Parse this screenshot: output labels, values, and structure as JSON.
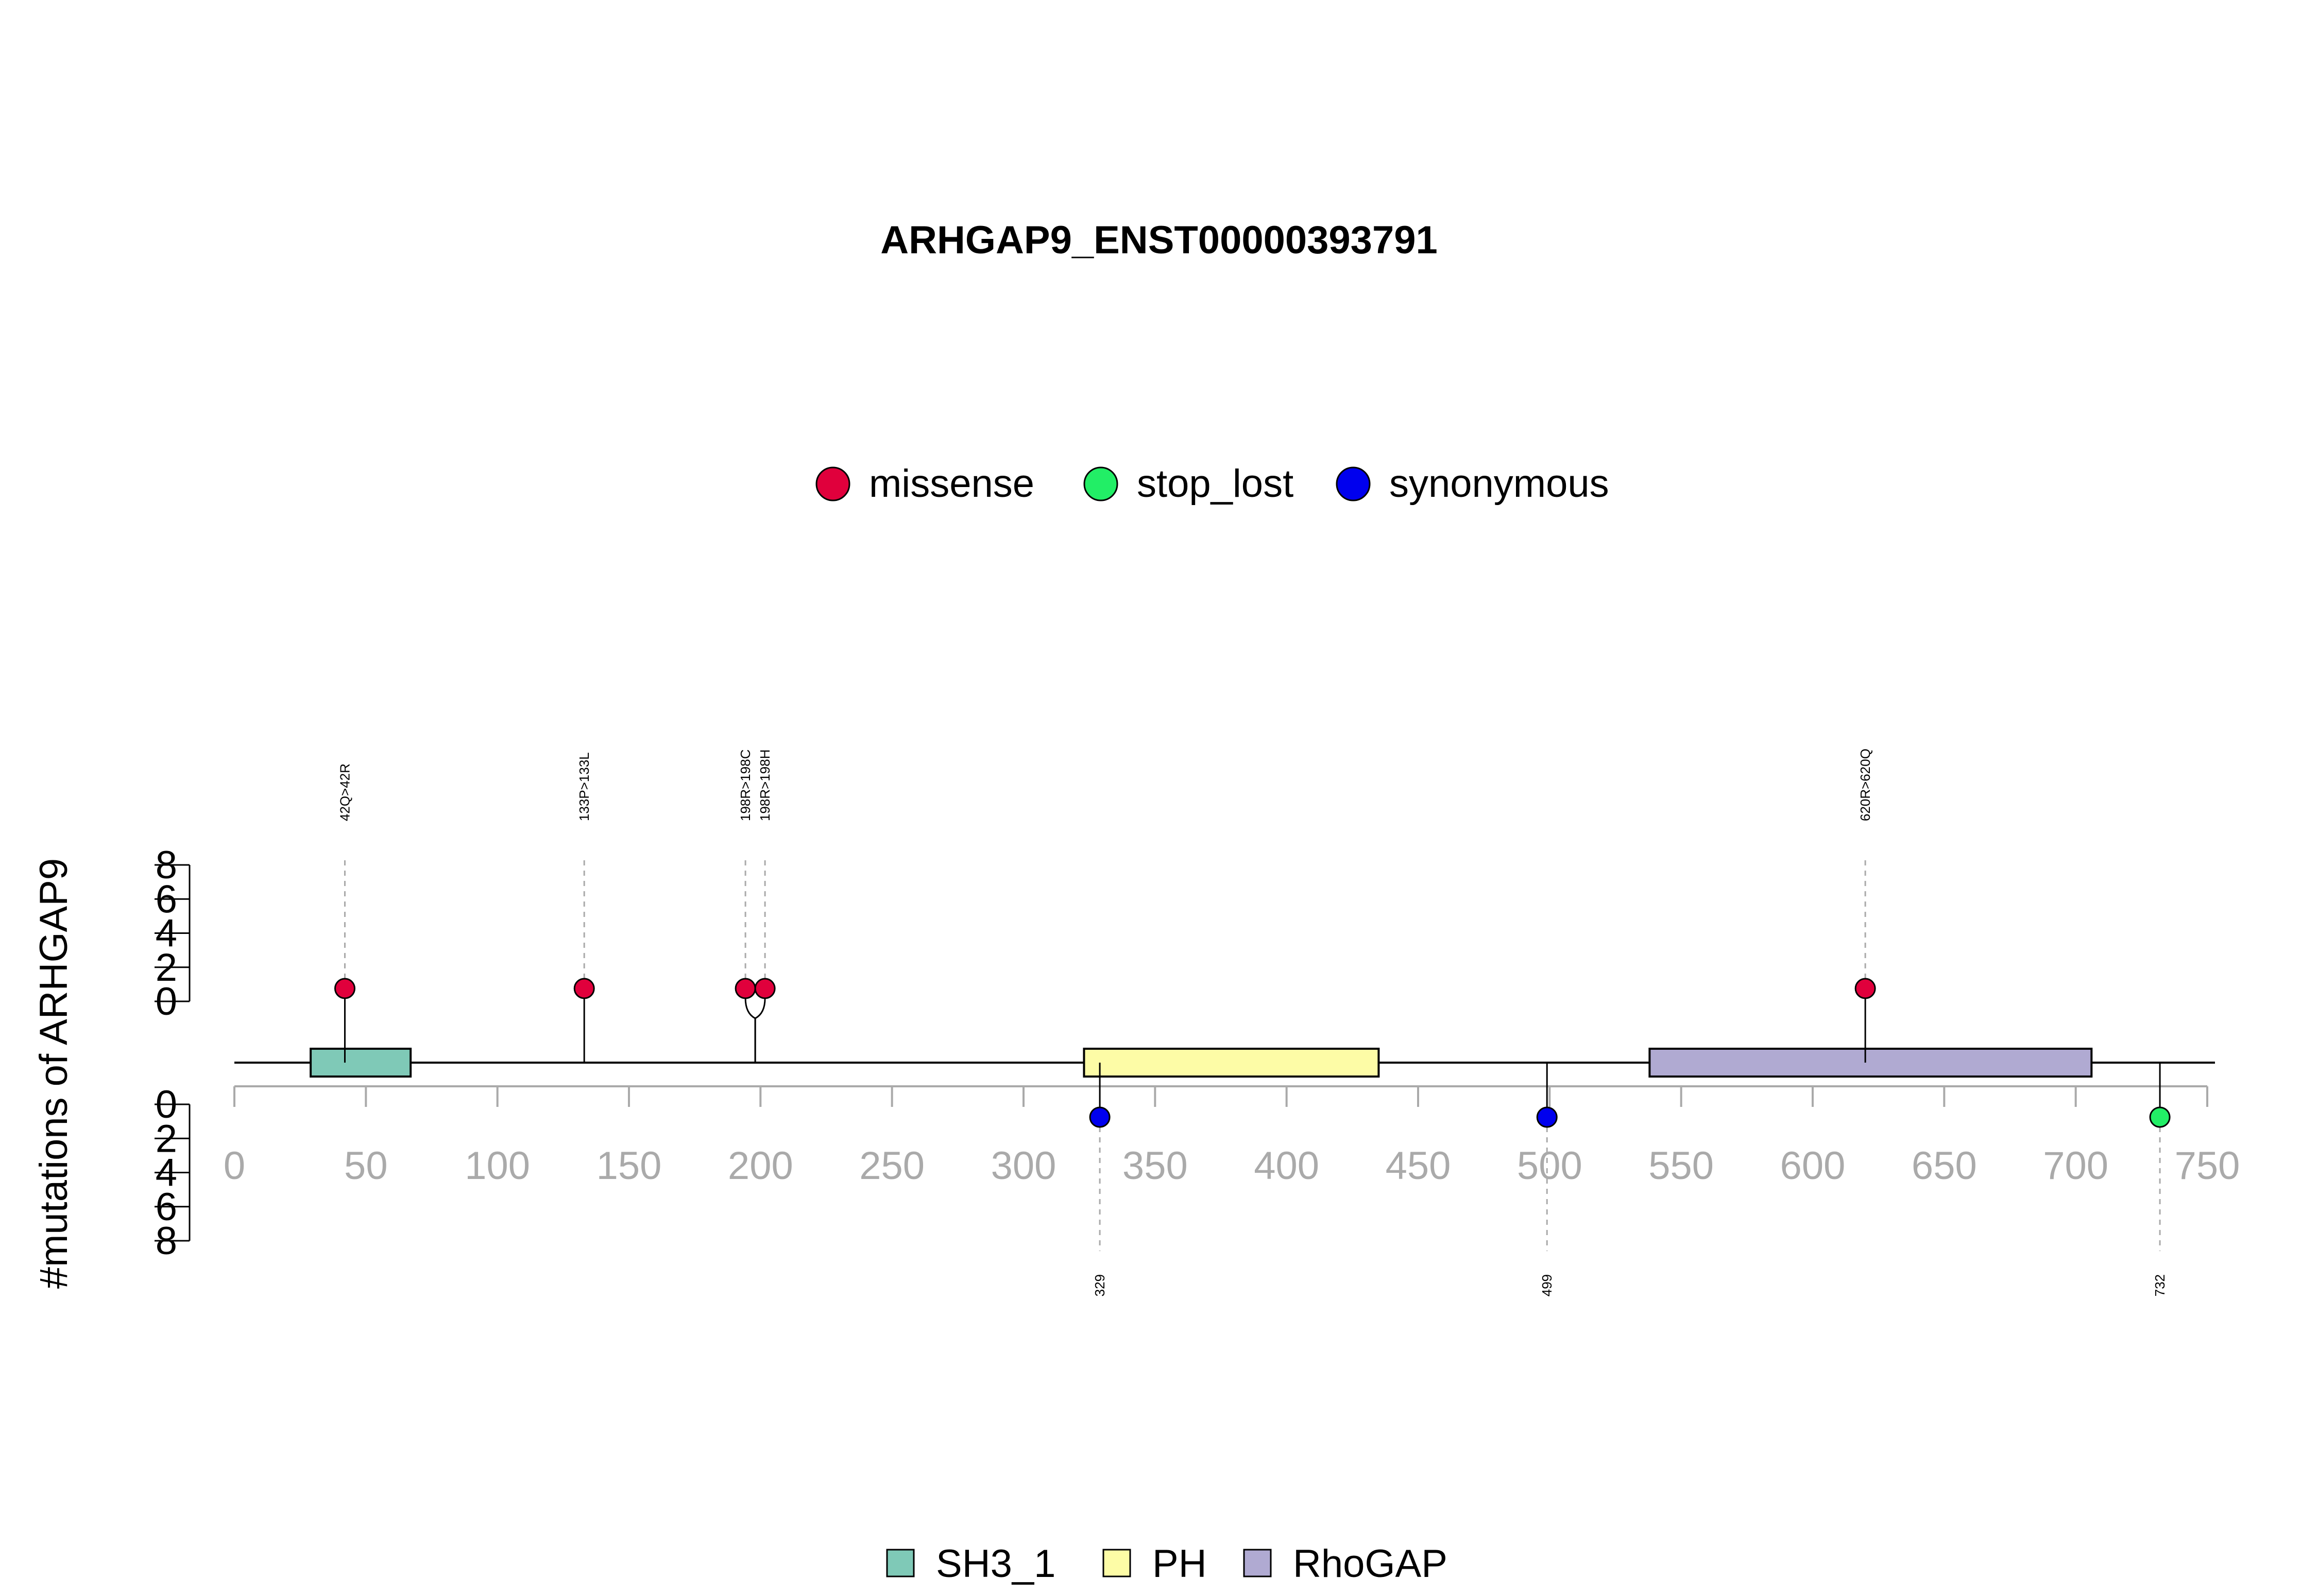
{
  "chart_data": {
    "type": "lollipop",
    "title": "ARHGAP9_ENST00000393791",
    "ylabel": "#mutations of ARHGAP9",
    "xlim": [
      0,
      750
    ],
    "xticks": [
      0,
      50,
      100,
      150,
      200,
      250,
      300,
      350,
      400,
      450,
      500,
      550,
      600,
      650,
      700,
      750
    ],
    "ylim_top": [
      0,
      8
    ],
    "ylim_bottom": [
      0,
      8
    ],
    "yticks": [
      0,
      2,
      4,
      6,
      8
    ],
    "mutation_types": [
      {
        "name": "missense",
        "color": "#e0003c"
      },
      {
        "name": "stop_lost",
        "color": "#22ee66"
      },
      {
        "name": "synonymous",
        "color": "#0000ee"
      }
    ],
    "domains": [
      {
        "name": "SH3_1",
        "start": 29,
        "end": 67,
        "color": "#7fc9b7"
      },
      {
        "name": "PH",
        "start": 323,
        "end": 435,
        "color": "#fdfca6"
      },
      {
        "name": "RhoGAP",
        "start": 538,
        "end": 706,
        "color": "#b0aad2"
      }
    ],
    "mutations_top": [
      {
        "position": 42,
        "count": 1,
        "type": "missense",
        "label": "42Q>42R"
      },
      {
        "position": 133,
        "count": 1,
        "type": "missense",
        "label": "133P>133L"
      },
      {
        "position": 198,
        "count": 1,
        "type": "missense",
        "label": "198R>198C"
      },
      {
        "position": 198,
        "count": 1,
        "type": "missense",
        "label": "198R>198H"
      },
      {
        "position": 620,
        "count": 1,
        "type": "missense",
        "label": "620R>620Q"
      }
    ],
    "mutations_bottom": [
      {
        "position": 329,
        "count": 1,
        "type": "synonymous",
        "label": "329"
      },
      {
        "position": 499,
        "count": 1,
        "type": "synonymous",
        "label": "499"
      },
      {
        "position": 732,
        "count": 1,
        "type": "stop_lost",
        "label": "732"
      }
    ]
  }
}
